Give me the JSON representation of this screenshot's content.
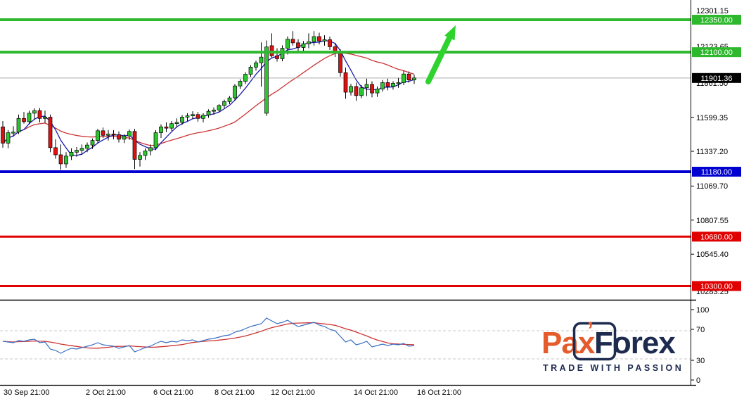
{
  "chart_data": {
    "type": "candlestick",
    "title": "",
    "instrument_note": "index CFD price chart with RSI sub-panel",
    "price_panel": {
      "ylim": [
        10194,
        12502
      ],
      "grid": false,
      "y_axis_ticks": [
        "12301.15",
        "12123.65",
        "11861.50",
        "11599.35",
        "11337.20",
        "11069.70",
        "10807.55",
        "10545.40",
        "10283.25"
      ],
      "current_price": {
        "label": "11901.36",
        "value": 11901.36,
        "bg": "#000000",
        "line_color": "#aaaaaa"
      },
      "levels": [
        {
          "label": "12350.00",
          "price": 12350.0,
          "color": "#2eb82e",
          "kind": "resistance"
        },
        {
          "label": "12100.00",
          "price": 12100.0,
          "color": "#2eb82e",
          "kind": "resistance"
        },
        {
          "label": "11180.00",
          "price": 11180.0,
          "color": "#0000d0",
          "kind": "support"
        },
        {
          "label": "10680.00",
          "price": 10680.0,
          "color": "#e00000",
          "kind": "support"
        },
        {
          "label": "10300.00",
          "price": 10300.0,
          "color": "#e00000",
          "kind": "support"
        }
      ],
      "candle_colors": {
        "bull": "#2dc52d",
        "bear": "#e01010",
        "wick": "#000000"
      },
      "ma_colors": {
        "fast": "#1a1aae",
        "slow": "#cc3333"
      },
      "candles_ohlc": [
        [
          11525,
          11570,
          11365,
          11400
        ],
        [
          11400,
          11500,
          11360,
          11480
        ],
        [
          11480,
          11530,
          11450,
          11485
        ],
        [
          11485,
          11620,
          11470,
          11590
        ],
        [
          11590,
          11640,
          11550,
          11565
        ],
        [
          11565,
          11650,
          11545,
          11630
        ],
        [
          11630,
          11668,
          11580,
          11650
        ],
        [
          11650,
          11670,
          11560,
          11590
        ],
        [
          11590,
          11650,
          11555,
          11600
        ],
        [
          11600,
          11620,
          11330,
          11365
        ],
        [
          11365,
          11430,
          11280,
          11310
        ],
        [
          11310,
          11390,
          11195,
          11240
        ],
        [
          11240,
          11330,
          11210,
          11300
        ],
        [
          11300,
          11360,
          11270,
          11330
        ],
        [
          11330,
          11370,
          11295,
          11345
        ],
        [
          11345,
          11390,
          11310,
          11360
        ],
        [
          11360,
          11405,
          11330,
          11385
        ],
        [
          11385,
          11435,
          11355,
          11420
        ],
        [
          11420,
          11510,
          11400,
          11495
        ],
        [
          11495,
          11520,
          11440,
          11460
        ],
        [
          11460,
          11500,
          11420,
          11470
        ],
        [
          11470,
          11500,
          11430,
          11465
        ],
        [
          11465,
          11490,
          11405,
          11430
        ],
        [
          11430,
          11470,
          11400,
          11455
        ],
        [
          11455,
          11505,
          11425,
          11490
        ],
        [
          11490,
          11510,
          11200,
          11275
        ],
        [
          11275,
          11330,
          11220,
          11305
        ],
        [
          11305,
          11360,
          11270,
          11340
        ],
        [
          11340,
          11390,
          11305,
          11365
        ],
        [
          11365,
          11500,
          11345,
          11480
        ],
        [
          11480,
          11545,
          11440,
          11525
        ],
        [
          11525,
          11560,
          11485,
          11515
        ],
        [
          11515,
          11570,
          11495,
          11550
        ],
        [
          11550,
          11590,
          11520,
          11560
        ],
        [
          11560,
          11615,
          11540,
          11600
        ],
        [
          11600,
          11630,
          11570,
          11610
        ],
        [
          11610,
          11645,
          11585,
          11620
        ],
        [
          11620,
          11640,
          11565,
          11590
        ],
        [
          11590,
          11630,
          11560,
          11615
        ],
        [
          11615,
          11660,
          11595,
          11645
        ],
        [
          11645,
          11675,
          11618,
          11655
        ],
        [
          11655,
          11700,
          11635,
          11690
        ],
        [
          11690,
          11735,
          11668,
          11720
        ],
        [
          11720,
          11762,
          11700,
          11748
        ],
        [
          11748,
          11855,
          11726,
          11840
        ],
        [
          11840,
          11892,
          11818,
          11876
        ],
        [
          11876,
          11945,
          11855,
          11930
        ],
        [
          11930,
          12000,
          11910,
          11985
        ],
        [
          11985,
          12035,
          11958,
          12018
        ],
        [
          12018,
          12175,
          11835,
          12062
        ],
        [
          11630,
          12190,
          11610,
          12140
        ],
        [
          12150,
          12245,
          12060,
          12072
        ],
        [
          12072,
          12130,
          12028,
          12050
        ],
        [
          12050,
          12152,
          12030,
          12130
        ],
        [
          12130,
          12222,
          12082,
          12200
        ],
        [
          12200,
          12262,
          12150,
          12172
        ],
        [
          12172,
          12200,
          12110,
          12136
        ],
        [
          12136,
          12186,
          12106,
          12165
        ],
        [
          12165,
          12245,
          12130,
          12180
        ],
        [
          12180,
          12262,
          12150,
          12220
        ],
        [
          12220,
          12250,
          12160,
          12186
        ],
        [
          12186,
          12230,
          12150,
          12196
        ],
        [
          12196,
          12220,
          12118,
          12142
        ],
        [
          12142,
          12172,
          12062,
          12092
        ],
        [
          12092,
          12122,
          11912,
          11942
        ],
        [
          11942,
          11982,
          11742,
          11792
        ],
        [
          11792,
          11856,
          11766,
          11836
        ],
        [
          11836,
          11866,
          11726,
          11766
        ],
        [
          11766,
          11846,
          11746,
          11826
        ],
        [
          11826,
          11896,
          11762,
          11852
        ],
        [
          11852,
          11876,
          11752,
          11786
        ],
        [
          11786,
          11836,
          11756,
          11816
        ],
        [
          11816,
          11886,
          11796,
          11866
        ],
        [
          11866,
          11896,
          11806,
          11836
        ],
        [
          11836,
          11876,
          11812,
          11860
        ],
        [
          11860,
          11902,
          11826,
          11866
        ],
        [
          11866,
          11956,
          11846,
          11932
        ],
        [
          11932,
          11952,
          11866,
          11886
        ],
        [
          11886,
          11926,
          11856,
          11901.36
        ]
      ]
    },
    "rsi_panel": {
      "ylim": [
        0,
        100
      ],
      "y_axis_ticks": [
        "100",
        "70",
        "30",
        "0"
      ],
      "dashed_levels": [
        70,
        30
      ],
      "line_colors": {
        "rsi": "#3b6fc4",
        "signal": "#cc3333"
      },
      "rsi_values": [
        55,
        54,
        53,
        56,
        55,
        57,
        58,
        53,
        54,
        44,
        42,
        38,
        42,
        45,
        44,
        46,
        48,
        50,
        53,
        50,
        49,
        48,
        45,
        47,
        49,
        40,
        43,
        46,
        48,
        52,
        55,
        53,
        55,
        54,
        57,
        56,
        57,
        54,
        56,
        58,
        59,
        61,
        63,
        64,
        68,
        70,
        73,
        76,
        78,
        80,
        88,
        84,
        80,
        82,
        85,
        80,
        76,
        78,
        80,
        82,
        78,
        76,
        72,
        70,
        62,
        54,
        57,
        50,
        52,
        55,
        47,
        49,
        51,
        49,
        51,
        50,
        52,
        48,
        49
      ]
    },
    "x_axis": {
      "labels": [
        "30 Sep 21:00",
        "2 Oct 21:00",
        "6 Oct 21:00",
        "8 Oct 21:00",
        "12 Oct 21:00",
        "14 Oct 21:00",
        "16 Oct 21:00"
      ]
    },
    "annotations": [
      {
        "type": "arrow",
        "direction": "up",
        "color": "#2ed32e",
        "meaning": "projected upward move toward 12350.00"
      }
    ]
  },
  "logo": {
    "brand_orange": "Pax",
    "brand_navy": "Forex",
    "apostrophe": "’",
    "tagline": "TRADE WITH PASSION",
    "orange": "#e55b2b",
    "navy": "#1d2b4f"
  }
}
